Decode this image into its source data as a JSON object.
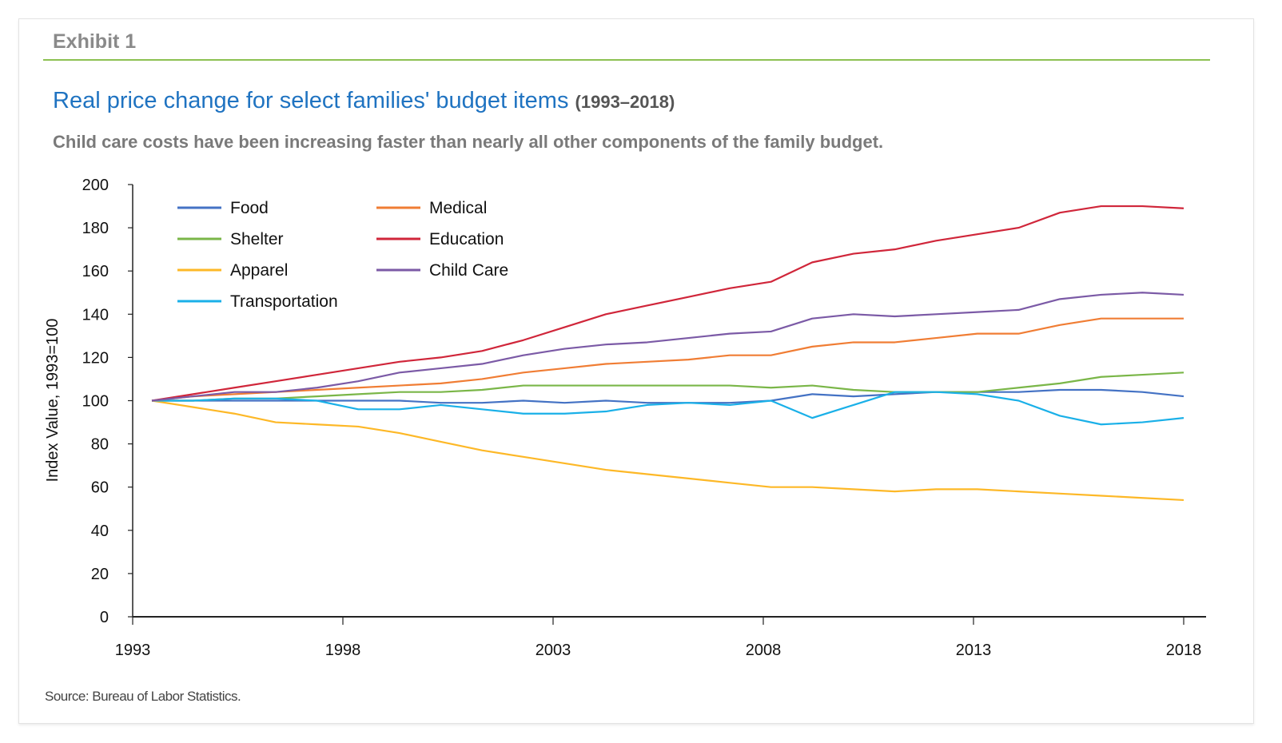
{
  "header": {
    "exhibit": "Exhibit 1",
    "title": "Real price change for select families' budget items",
    "title_years": "(1993–2018)",
    "subtitle": "Child care costs have been increasing faster than nearly all other components of the family budget."
  },
  "footer": {
    "source": "Source: Bureau of Labor Statistics."
  },
  "colors": {
    "accent_rule": "#8cc152",
    "title": "#1f73c1"
  },
  "chart_data": {
    "type": "line",
    "title": "Real price change for select families' budget items (1993–2018)",
    "xlabel": "",
    "ylabel": "Index Value, 1993=100",
    "xlim": [
      1993,
      2018
    ],
    "ylim": [
      0,
      200
    ],
    "xticks": [
      "1993",
      "1998",
      "2003",
      "2008",
      "2013",
      "2018"
    ],
    "yticks": [
      "0",
      "20",
      "40",
      "60",
      "80",
      "100",
      "120",
      "140",
      "160",
      "180",
      "200"
    ],
    "grid": false,
    "legend_position": "top-left",
    "x": [
      1993,
      1994,
      1995,
      1996,
      1997,
      1998,
      1999,
      2000,
      2001,
      2002,
      2003,
      2004,
      2005,
      2006,
      2007,
      2008,
      2009,
      2010,
      2011,
      2012,
      2013,
      2014,
      2015,
      2016,
      2017,
      2018
    ],
    "series": [
      {
        "name": "Food",
        "color": "#4472c4",
        "values": [
          100,
          100,
          100,
          100,
          100,
          100,
          100,
          99,
          99,
          100,
          99,
          100,
          99,
          99,
          99,
          100,
          103,
          102,
          103,
          104,
          104,
          104,
          105,
          105,
          104,
          102
        ]
      },
      {
        "name": "Shelter",
        "color": "#7ab648",
        "values": [
          100,
          100,
          101,
          101,
          102,
          103,
          104,
          104,
          105,
          107,
          107,
          107,
          107,
          107,
          107,
          106,
          107,
          105,
          104,
          104,
          104,
          106,
          108,
          111,
          112,
          113
        ]
      },
      {
        "name": "Apparel",
        "color": "#fdb827",
        "values": [
          100,
          97,
          94,
          90,
          89,
          88,
          85,
          81,
          77,
          74,
          71,
          68,
          66,
          64,
          62,
          60,
          60,
          59,
          58,
          59,
          59,
          58,
          57,
          56,
          55,
          54
        ]
      },
      {
        "name": "Transportation",
        "color": "#1ab0e8",
        "values": [
          100,
          100,
          101,
          101,
          100,
          96,
          96,
          98,
          96,
          94,
          94,
          95,
          98,
          99,
          98,
          100,
          92,
          98,
          104,
          104,
          103,
          100,
          93,
          89,
          90,
          92
        ]
      },
      {
        "name": "Medical",
        "color": "#f07d34",
        "values": [
          100,
          102,
          103,
          104,
          105,
          106,
          107,
          108,
          110,
          113,
          115,
          117,
          118,
          119,
          121,
          121,
          125,
          127,
          127,
          129,
          131,
          131,
          135,
          138,
          138,
          138
        ]
      },
      {
        "name": "Education",
        "color": "#d0263a",
        "values": [
          100,
          103,
          106,
          109,
          112,
          115,
          118,
          120,
          123,
          128,
          134,
          140,
          144,
          148,
          152,
          155,
          164,
          168,
          170,
          174,
          177,
          180,
          187,
          190,
          190,
          189
        ]
      },
      {
        "name": "Child Care",
        "color": "#7b5aa6",
        "values": [
          100,
          102,
          104,
          104,
          106,
          109,
          113,
          115,
          117,
          121,
          124,
          126,
          127,
          129,
          131,
          132,
          138,
          140,
          139,
          140,
          141,
          142,
          147,
          149,
          150,
          149
        ]
      }
    ]
  }
}
